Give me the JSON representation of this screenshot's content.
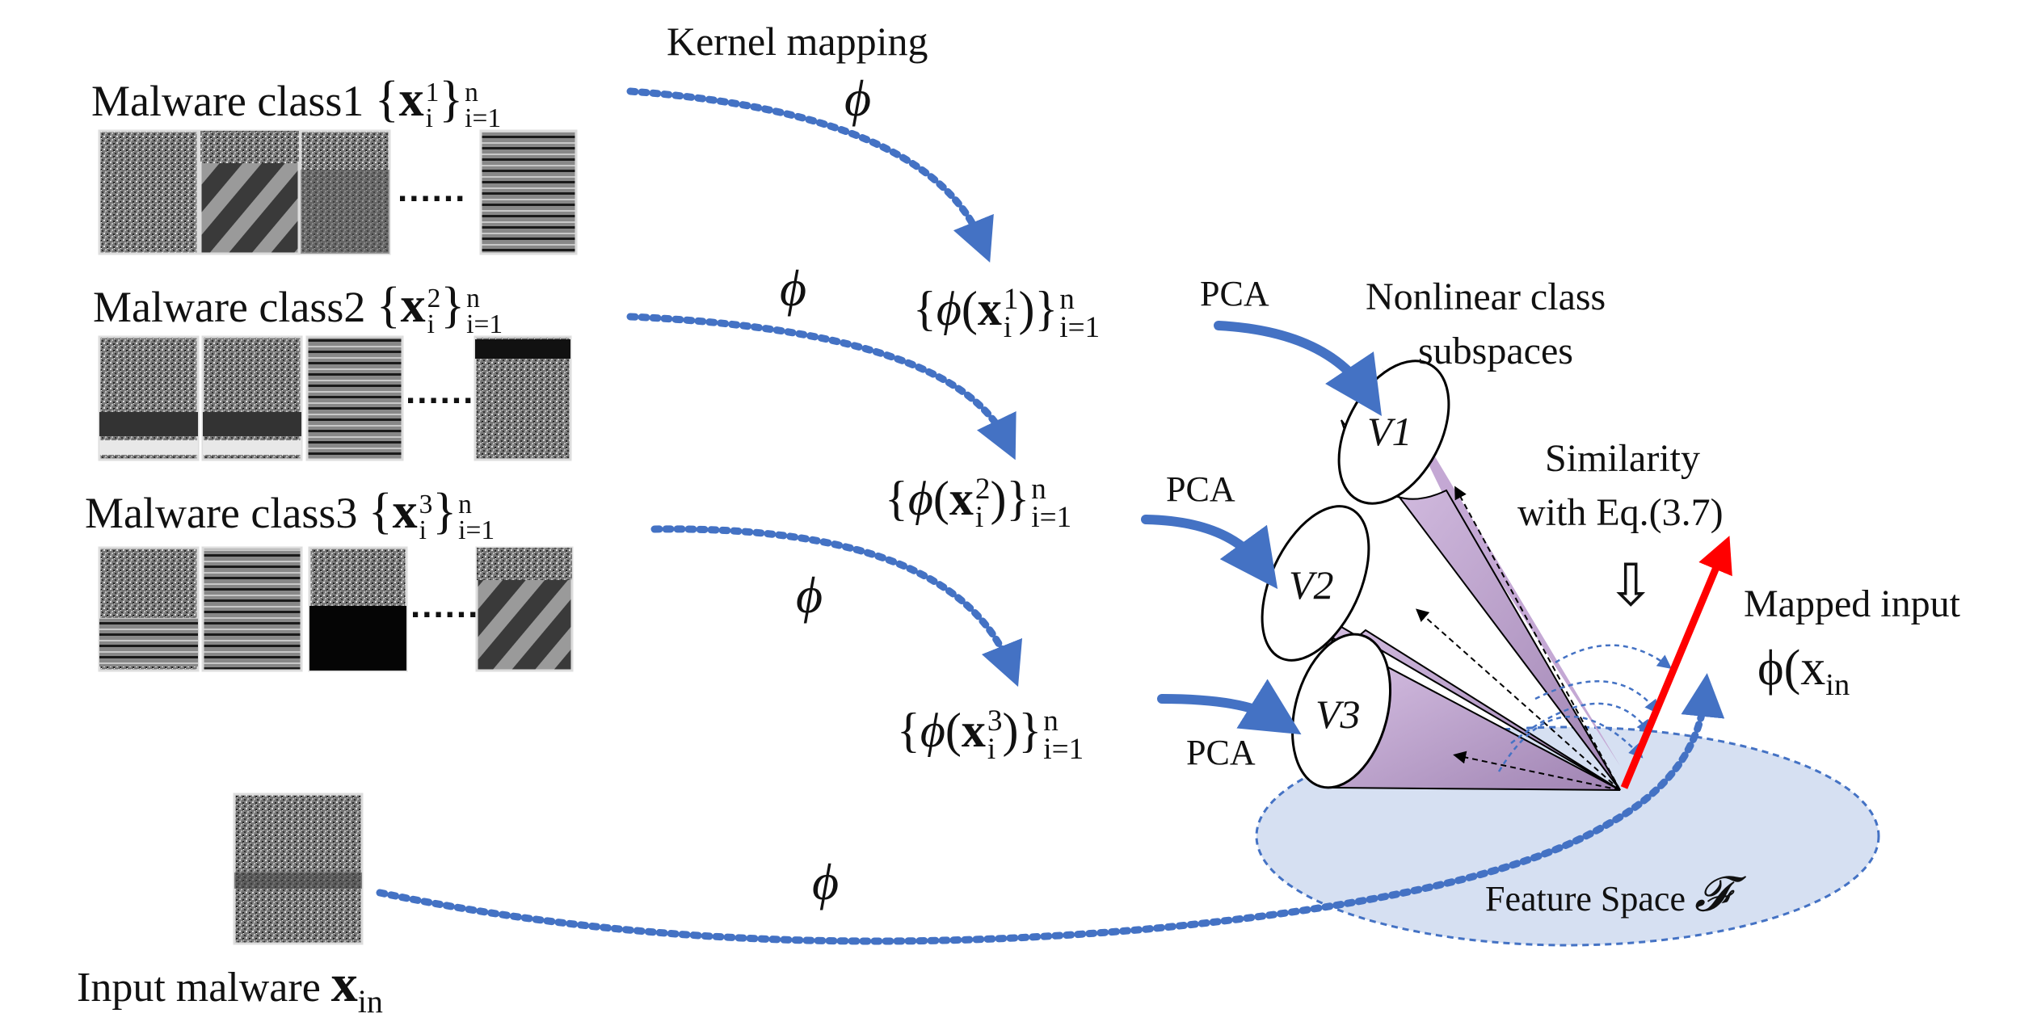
{
  "title": "Kernel mapping",
  "phi_symbol": "ϕ",
  "classes": [
    {
      "label": "Malware class1",
      "set_var": "x",
      "sup": "1",
      "sub": "i",
      "range_sup": "n",
      "range_sub": "i=1"
    },
    {
      "label": "Malware class2",
      "set_var": "x",
      "sup": "2",
      "sub": "i",
      "range_sup": "n",
      "range_sub": "i=1"
    },
    {
      "label": "Malware class3",
      "set_var": "x",
      "sup": "3",
      "sub": "i",
      "range_sup": "n",
      "range_sub": "i=1"
    }
  ],
  "mapped_sets": [
    {
      "sup": "1"
    },
    {
      "sup": "2"
    },
    {
      "sup": "3"
    }
  ],
  "pca_label": "PCA",
  "subspaces_label_line1": "Nonlinear class",
  "subspaces_label_line2": "subspaces",
  "subspace_names": [
    "V1",
    "V2",
    "V3"
  ],
  "similarity_line1": "Similarity",
  "similarity_line2": "with Eq.(3.7)",
  "similarity_arrow": "⇩",
  "mapped_input_label": "Mapped input",
  "mapped_input_symbol": "ϕ(x",
  "mapped_input_sub": "in",
  "feature_space_label": "Feature Space",
  "feature_space_symbol": "𝓕",
  "input_label": "Input malware",
  "input_symbol": "x",
  "input_sub": "in",
  "ellipsis": "......",
  "colors": {
    "arrow_blue": "#4472c4",
    "cone_purple": "#c8acd8",
    "feature_space": "#d6e0f2",
    "red_vector": "#ff0000"
  }
}
